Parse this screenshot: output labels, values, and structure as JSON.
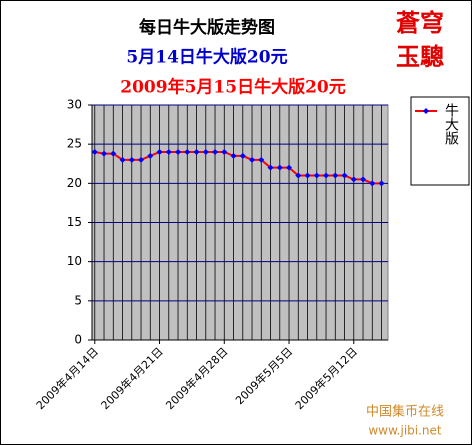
{
  "logo": [
    "蒼穹",
    "玉驄"
  ],
  "watermark": {
    "name": "中国集币在线",
    "url": "www.jibi.net"
  },
  "chart_data": {
    "type": "line",
    "title": "每日牛大版走势图",
    "subtitle": "5月14日牛大版20元",
    "subtitle2": "2009年5月15日牛大版20元",
    "categories": [
      "2009年4月14日",
      null,
      null,
      null,
      null,
      null,
      null,
      "2009年4月21日",
      null,
      null,
      null,
      null,
      null,
      null,
      "2009年4月28日",
      null,
      null,
      null,
      null,
      null,
      null,
      "2009年5月5日",
      null,
      null,
      null,
      null,
      null,
      null,
      "2009年5月12日",
      null,
      null,
      null
    ],
    "series": [
      {
        "name": "牛大版",
        "color": "#ff0000",
        "marker_color": "#0000ff",
        "values": [
          24,
          23.8,
          23.8,
          23,
          23,
          23,
          23.5,
          24,
          24,
          24,
          24,
          24,
          24,
          24,
          24,
          23.5,
          23.5,
          23,
          23,
          22,
          22,
          22,
          21,
          21,
          21,
          21,
          21,
          21,
          20.5,
          20.5,
          20,
          20
        ]
      }
    ],
    "ylim": [
      0,
      30
    ],
    "yticks": [
      0,
      5,
      10,
      15,
      20,
      25,
      30
    ],
    "grid": true,
    "grid_color": "#000080",
    "plot_background": "#c0c0c0",
    "legend": "right"
  }
}
